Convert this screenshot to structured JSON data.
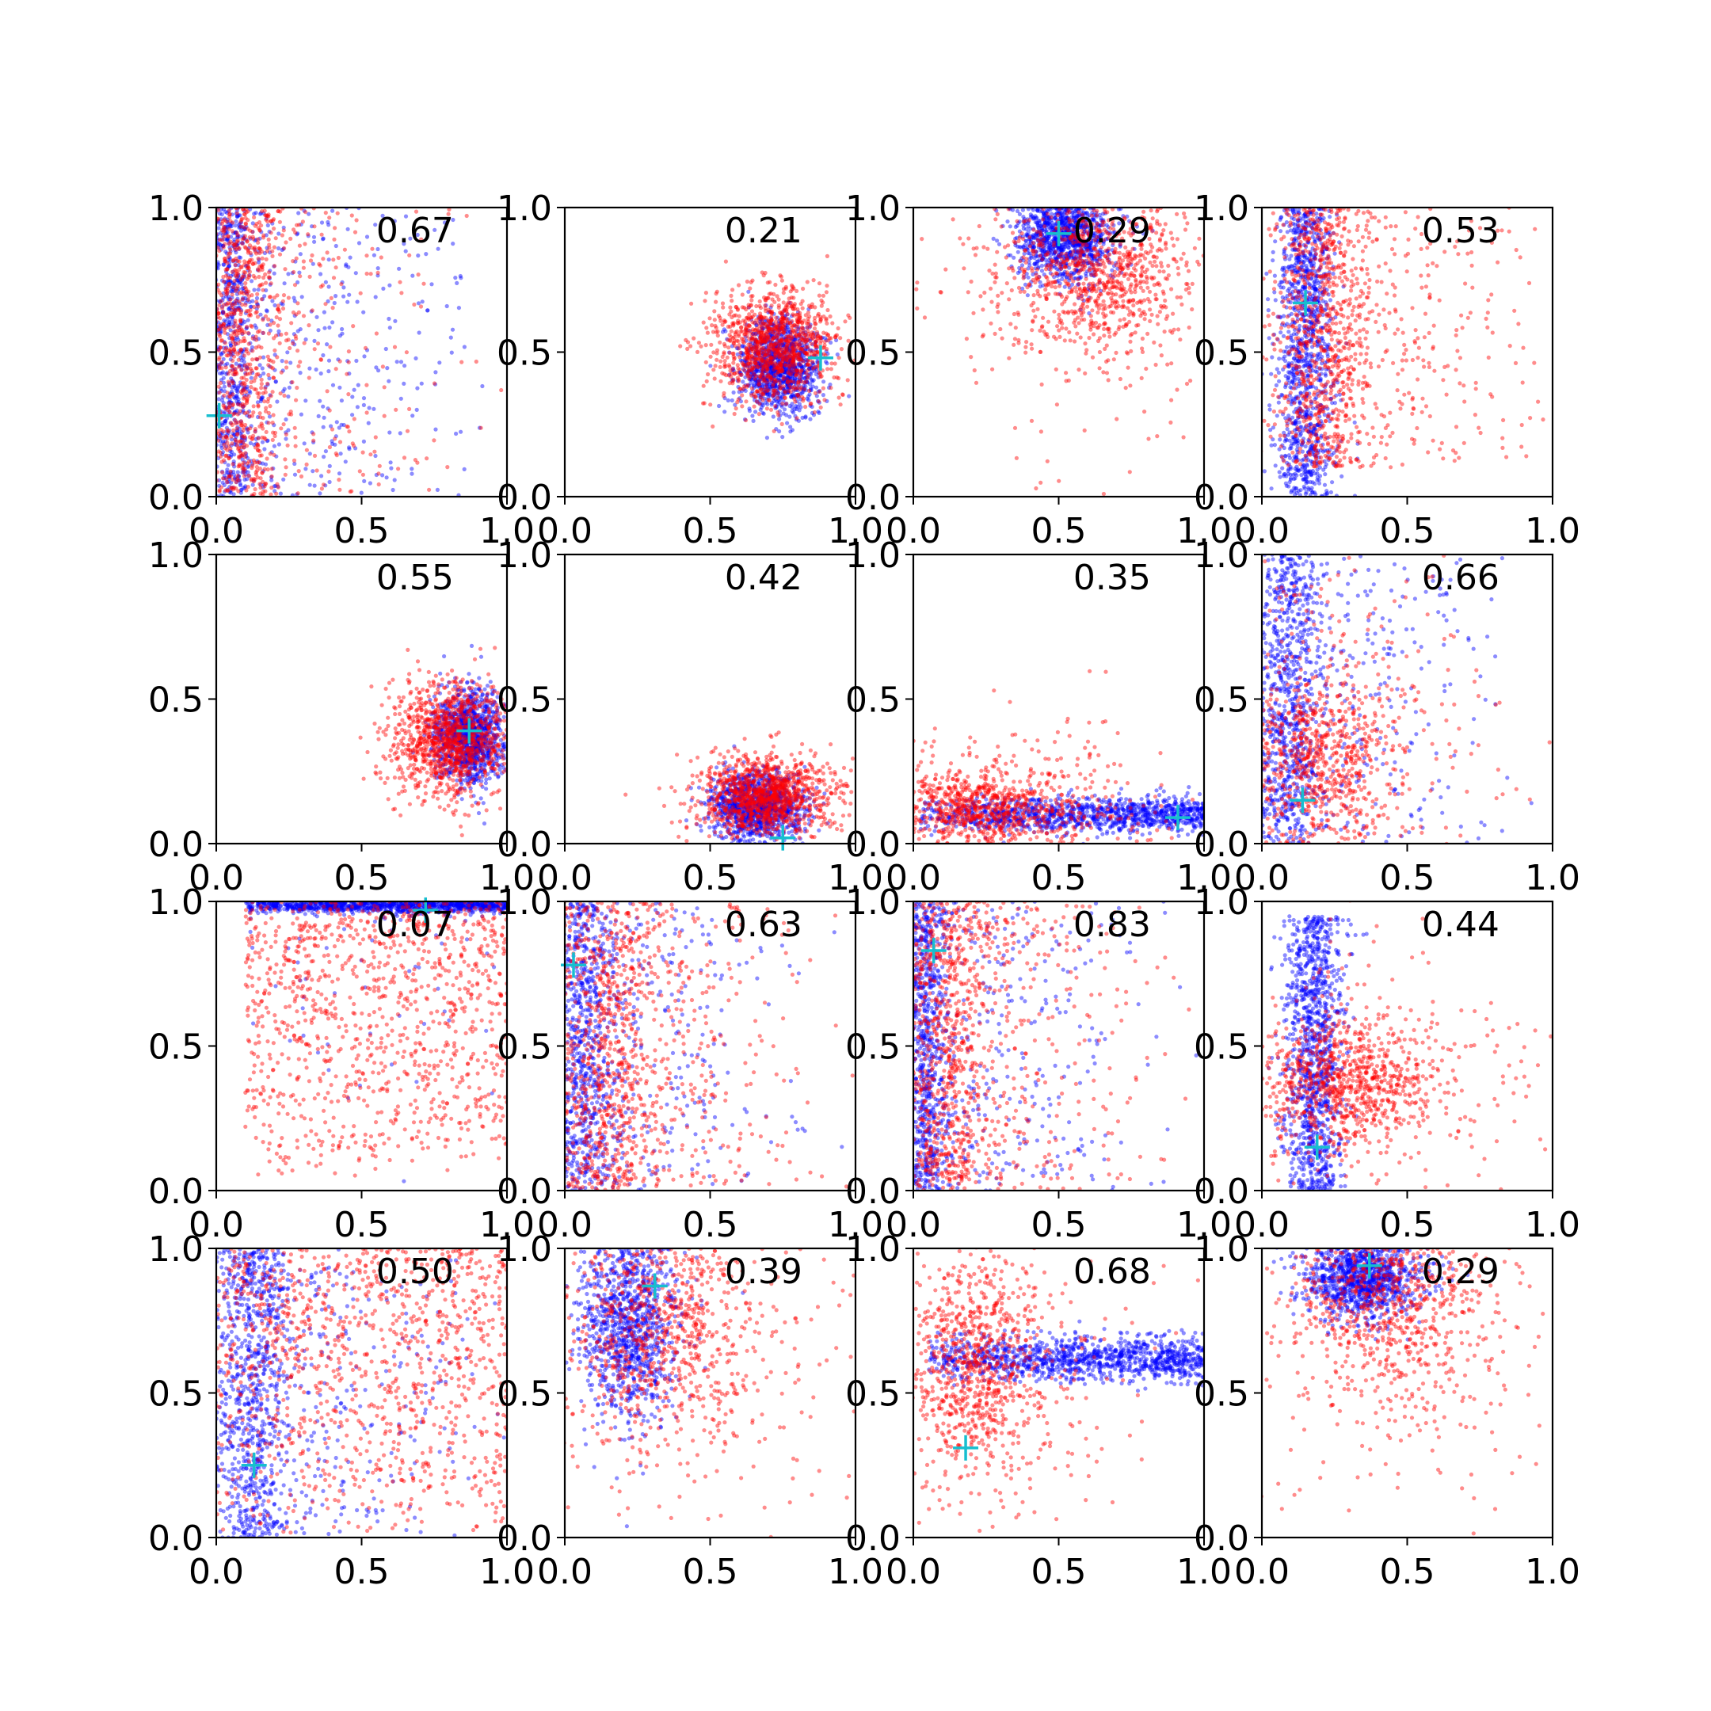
{
  "figure": {
    "background": "#ffffff"
  },
  "colors": {
    "series_a": "#0000ff",
    "series_b": "#ff0000",
    "marker": "#17becf",
    "axis": "#000000"
  },
  "chart_data": {
    "type": "scatter",
    "layout": "4x4 grid of scatter subplots",
    "grid": false,
    "xlim": [
      0,
      1
    ],
    "ylim": [
      0,
      1
    ],
    "ticks": [
      "0.0",
      "0.5",
      "1.0"
    ],
    "panels": [
      {
        "value": "0.67",
        "marker": [
          0.01,
          0.28
        ],
        "blue": {
          "type": "vband",
          "x": 0.04,
          "sx": 0.05,
          "ylo": 0.0,
          "yhi": 1.0,
          "tail": 0.35,
          "tailAxis": "x"
        },
        "red": {
          "type": "vband",
          "x": 0.07,
          "sx": 0.08,
          "ylo": 0.0,
          "yhi": 1.0,
          "tail": 0.25,
          "tailAxis": "x"
        }
      },
      {
        "value": "0.21",
        "marker": [
          0.88,
          0.48
        ],
        "blue": {
          "type": "blob",
          "x": 0.74,
          "y": 0.45,
          "sx": 0.07,
          "sy": 0.08
        },
        "red": {
          "type": "blob",
          "x": 0.72,
          "y": 0.52,
          "sx": 0.11,
          "sy": 0.1
        }
      },
      {
        "value": "0.29",
        "marker": [
          0.5,
          0.91
        ],
        "blue": {
          "type": "blob",
          "x": 0.52,
          "y": 0.9,
          "sx": 0.08,
          "sy": 0.08
        },
        "red": {
          "type": "blob",
          "x": 0.62,
          "y": 0.78,
          "sx": 0.15,
          "sy": 0.14,
          "tail": 0.25
        }
      },
      {
        "value": "0.53",
        "marker": [
          0.15,
          0.67
        ],
        "blue": {
          "type": "vband",
          "x": 0.15,
          "sx": 0.05,
          "ylo": 0.0,
          "yhi": 1.0
        },
        "red": {
          "type": "vband",
          "x": 0.2,
          "sx": 0.08,
          "ylo": 0.1,
          "yhi": 1.0,
          "tail": 0.3,
          "tailAxis": "x"
        }
      },
      {
        "value": "0.55",
        "marker": [
          0.87,
          0.39
        ],
        "blue": {
          "type": "blob",
          "x": 0.87,
          "y": 0.37,
          "sx": 0.06,
          "sy": 0.08
        },
        "red": {
          "type": "blob",
          "x": 0.8,
          "y": 0.36,
          "sx": 0.1,
          "sy": 0.1
        }
      },
      {
        "value": "0.42",
        "marker": [
          0.75,
          0.02
        ],
        "blue": {
          "type": "blob",
          "x": 0.66,
          "y": 0.13,
          "sx": 0.08,
          "sy": 0.06
        },
        "red": {
          "type": "blob",
          "x": 0.7,
          "y": 0.17,
          "sx": 0.12,
          "sy": 0.07
        }
      },
      {
        "value": "0.35",
        "marker": [
          0.91,
          0.09
        ],
        "blue": {
          "type": "hband",
          "y": 0.1,
          "sy": 0.03,
          "xlo": 0.02,
          "xhi": 1.0
        },
        "red": {
          "type": "blob",
          "x": 0.25,
          "y": 0.12,
          "sx": 0.15,
          "sy": 0.06,
          "tail": 0.45
        }
      },
      {
        "value": "0.66",
        "marker": [
          0.14,
          0.15
        ],
        "blue": {
          "type": "vband",
          "x": 0.08,
          "sx": 0.06,
          "ylo": 0.0,
          "yhi": 1.0,
          "tail": 0.3,
          "tailAxis": "x"
        },
        "red": {
          "type": "blob",
          "x": 0.2,
          "y": 0.3,
          "sx": 0.12,
          "sy": 0.15,
          "tail": 0.5
        }
      },
      {
        "value": "0.07",
        "marker": [
          0.72,
          0.97
        ],
        "blue": {
          "type": "hband",
          "y": 0.985,
          "sy": 0.012,
          "xlo": 0.1,
          "xhi": 1.0,
          "tail": 0.05
        },
        "red": {
          "type": "uniform",
          "xlo": 0.1,
          "xhi": 1.0,
          "ylo": 0.05,
          "yhi": 1.0
        }
      },
      {
        "value": "0.63",
        "marker": [
          0.03,
          0.78
        ],
        "blue": {
          "type": "vband",
          "x": 0.05,
          "sx": 0.06,
          "ylo": 0.0,
          "yhi": 1.0,
          "tail": 0.3,
          "tailAxis": "x"
        },
        "red": {
          "type": "vband",
          "x": 0.12,
          "sx": 0.1,
          "ylo": 0.0,
          "yhi": 1.0,
          "tail": 0.35,
          "tailAxis": "x"
        }
      },
      {
        "value": "0.83",
        "marker": [
          0.07,
          0.83
        ],
        "blue": {
          "type": "vband",
          "x": 0.04,
          "sx": 0.04,
          "ylo": 0.0,
          "yhi": 1.0,
          "tail": 0.3,
          "tailAxis": "x"
        },
        "red": {
          "type": "vband",
          "x": 0.1,
          "sx": 0.08,
          "ylo": 0.0,
          "yhi": 1.0,
          "tail": 0.35,
          "tailAxis": "x"
        }
      },
      {
        "value": "0.44",
        "marker": [
          0.19,
          0.15
        ],
        "blue": {
          "type": "vband",
          "x": 0.18,
          "sx": 0.05,
          "ylo": 0.0,
          "yhi": 0.95
        },
        "red": {
          "type": "blob",
          "x": 0.3,
          "y": 0.38,
          "sx": 0.15,
          "sy": 0.1,
          "tail": 0.3
        }
      },
      {
        "value": "0.50",
        "marker": [
          0.13,
          0.25
        ],
        "blue": {
          "type": "vband",
          "x": 0.12,
          "sx": 0.07,
          "ylo": 0.0,
          "yhi": 1.0,
          "tail": 0.25,
          "tailAxis": "x"
        },
        "red": {
          "type": "uniform",
          "xlo": 0.0,
          "xhi": 1.0,
          "ylo": 0.0,
          "yhi": 1.0
        }
      },
      {
        "value": "0.39",
        "marker": [
          0.31,
          0.87
        ],
        "blue": {
          "type": "blob",
          "x": 0.22,
          "y": 0.75,
          "sx": 0.09,
          "sy": 0.18
        },
        "red": {
          "type": "blob",
          "x": 0.35,
          "y": 0.72,
          "sx": 0.17,
          "sy": 0.2,
          "tail": 0.3
        }
      },
      {
        "value": "0.68",
        "marker": [
          0.18,
          0.31
        ],
        "blue": {
          "type": "hband",
          "y": 0.62,
          "sy": 0.04,
          "xlo": 0.05,
          "xhi": 1.0
        },
        "red": {
          "type": "blob",
          "x": 0.22,
          "y": 0.6,
          "sx": 0.12,
          "sy": 0.18,
          "tail": 0.35
        }
      },
      {
        "value": "0.29",
        "marker": [
          0.37,
          0.94
        ],
        "blue": {
          "type": "blob",
          "x": 0.35,
          "y": 0.9,
          "sx": 0.1,
          "sy": 0.07
        },
        "red": {
          "type": "blob",
          "x": 0.45,
          "y": 0.82,
          "sx": 0.17,
          "sy": 0.18,
          "tail": 0.35
        }
      }
    ]
  }
}
